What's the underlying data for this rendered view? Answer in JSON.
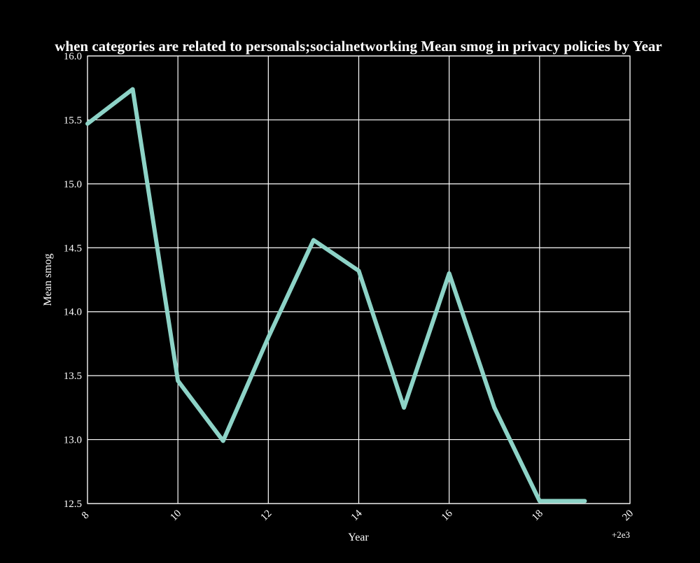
{
  "chart_data": {
    "type": "line",
    "title": "when categories are related to personals;socialnetworking Mean smog in privacy policies by Year",
    "xlabel": "Year",
    "ylabel": "Mean smog",
    "x_offset_label": "+2e3",
    "xlim": [
      2008,
      2020
    ],
    "ylim": [
      12.5,
      16.0
    ],
    "x_ticks": [
      2008,
      2010,
      2012,
      2014,
      2016,
      2018,
      2020
    ],
    "x_tick_labels": [
      "8",
      "10",
      "12",
      "14",
      "16",
      "18",
      "20"
    ],
    "y_ticks": [
      12.5,
      13.0,
      13.5,
      14.0,
      14.5,
      15.0,
      15.5,
      16.0
    ],
    "y_tick_labels": [
      "12.5",
      "13.0",
      "13.5",
      "14.0",
      "14.5",
      "15.0",
      "15.5",
      "16.0"
    ],
    "grid": true,
    "legend": "none",
    "colors": {
      "background": "#000000",
      "line": "#8dd3c7",
      "grid": "#ffffff",
      "text": "#ffffff"
    },
    "series": [
      {
        "x": [
          2008,
          2009,
          2010,
          2011,
          2012,
          2013,
          2014,
          2015,
          2016,
          2017,
          2018,
          2019
        ],
        "y": [
          15.47,
          15.74,
          13.46,
          12.99,
          13.8,
          14.56,
          14.32,
          13.25,
          14.3,
          13.25,
          12.52,
          12.52
        ]
      }
    ]
  }
}
